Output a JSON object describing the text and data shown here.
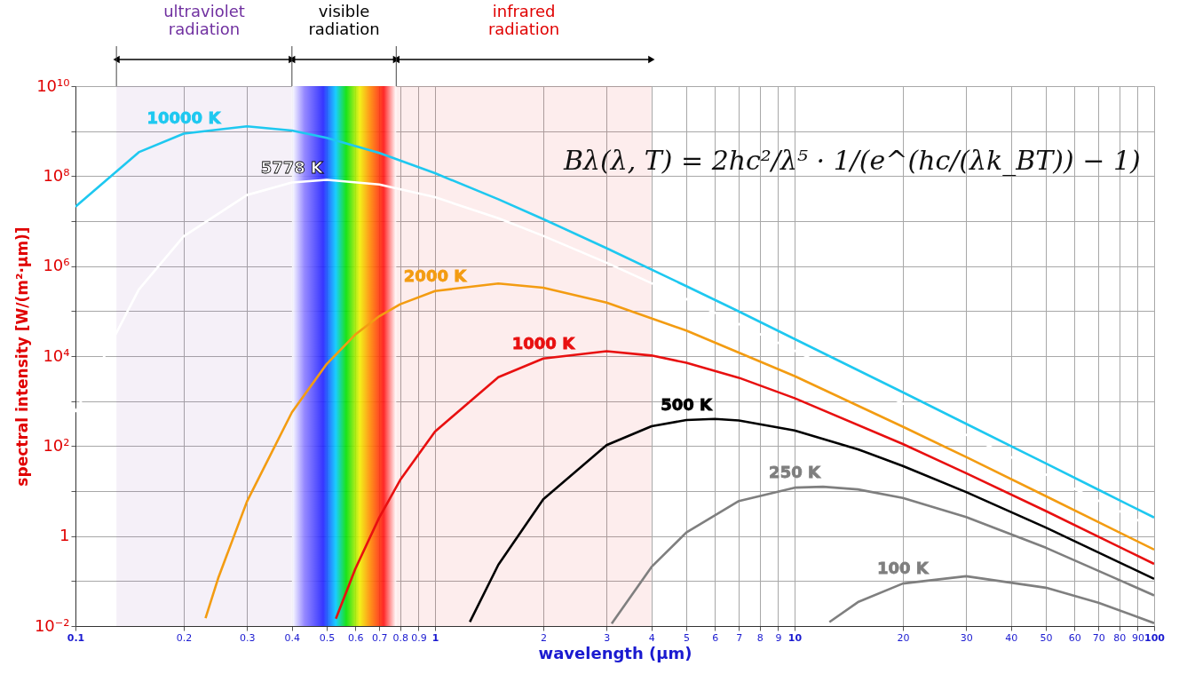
{
  "chart_data": {
    "type": "line",
    "xlabel": "wavelength (µm)",
    "ylabel": "spectral intensity [W/(m²·µm)]",
    "log": "xy",
    "grid": true,
    "xlim": [
      0.1,
      100
    ],
    "ylim": [
      0.01,
      10000000000
    ],
    "xticks": [
      0.1,
      0.2,
      0.3,
      0.4,
      0.5,
      0.6,
      0.7,
      0.8,
      0.9,
      1,
      2,
      3,
      4,
      5,
      6,
      7,
      8,
      9,
      10,
      20,
      30,
      40,
      50,
      60,
      70,
      80,
      90,
      100
    ],
    "yticks": [
      {
        "value": 0.01,
        "label": "10⁻²"
      },
      {
        "value": 0.1,
        "label": null
      },
      1,
      {
        "value": 10,
        "label": null
      },
      {
        "value": 100,
        "label": "10²"
      },
      {
        "value": 1000,
        "label": null
      },
      {
        "value": 10000,
        "label": "10⁴"
      },
      {
        "value": 100000,
        "label": null
      },
      {
        "value": 1000000,
        "label": "10⁶"
      },
      {
        "value": 10000000,
        "label": null
      },
      {
        "value": 100000000,
        "label": "10⁸"
      },
      {
        "value": 1000000000,
        "label": null
      },
      {
        "value": 10000000000,
        "label": "10¹⁰"
      }
    ],
    "bands": [
      {
        "axis": "x",
        "from": 0.13,
        "to": 0.4,
        "label": "ultraviolet radiation",
        "color": "#7030a0"
      },
      {
        "axis": "x",
        "from": 0.4,
        "to": 0.78,
        "label": "visible radiation"
      },
      {
        "axis": "x",
        "from": 0.78,
        "to": 4,
        "label": "infrared radiation",
        "color": "#e00000"
      }
    ],
    "annotations": [
      "Bλ(λ, T) = 2hc²/λ⁵ · 1/(e^(hc/(λk_BT)) − 1)"
    ],
    "series": [
      {
        "name": "10000 K",
        "color": "#1ec8f0",
        "x": [
          0.1,
          0.15,
          0.2,
          0.3,
          0.4,
          0.5,
          0.7,
          1,
          1.5,
          2,
          3,
          5,
          7,
          10,
          20,
          30,
          50,
          70,
          100
        ],
        "values": [
          21000000,
          340000000,
          880000000,
          1280000000,
          1030000000,
          710000000,
          327000000,
          116000000,
          30600000,
          11100000,
          2500000,
          359000,
          98000,
          24000,
          1570,
          313,
          41,
          10.7,
          2.58
        ]
      },
      {
        "name": "5778 K",
        "color": "#ffffff",
        "x": [
          0.1,
          0.15,
          0.2,
          0.3,
          0.4,
          0.5,
          0.7,
          1,
          1.5,
          2,
          3,
          5,
          10,
          20,
          30,
          50,
          100
        ],
        "values": [
          573,
          300000,
          4600000,
          38000000,
          72000000,
          83000000,
          65000000,
          34000000,
          11600000,
          4700000,
          1190000,
          185000,
          13200,
          882,
          178,
          23.4,
          1.48
        ]
      },
      {
        "name": "2000 K",
        "color": "#f39c12",
        "x": [
          0.23,
          0.25,
          0.3,
          0.4,
          0.5,
          0.6,
          0.7,
          0.8,
          1,
          1.5,
          2,
          3,
          5,
          10,
          20,
          30,
          50,
          100
        ],
        "values": [
          0.015,
          0.122,
          5.9,
          565,
          6700,
          30000,
          77000,
          142000,
          280000,
          410000,
          330000,
          154000,
          37000,
          3600,
          270,
          57,
          7.7,
          0.5
        ]
      },
      {
        "name": "1000 K",
        "color": "#e81010",
        "x": [
          0.53,
          0.6,
          0.7,
          0.8,
          1,
          1.5,
          2,
          3,
          4,
          5,
          7,
          10,
          20,
          30,
          50,
          100
        ],
        "values": [
          0.0145,
          0.185,
          2.6,
          17.6,
          211,
          3400,
          8800,
          12800,
          10300,
          7100,
          3300,
          1160,
          111,
          25,
          3.6,
          0.24
        ]
      },
      {
        "name": "500 K",
        "color": "#000000",
        "x": [
          1.25,
          1.5,
          2,
          3,
          4,
          5,
          6,
          7,
          10,
          15,
          20,
          30,
          50,
          100
        ],
        "values": [
          0.0123,
          0.23,
          6.6,
          105,
          275,
          380,
          401,
          372,
          223,
          85,
          36,
          9.5,
          1.54,
          0.112
        ]
      },
      {
        "name": "250 K",
        "color": "#7f7f7f",
        "x": [
          3.1,
          4,
          5,
          7,
          10,
          12,
          15,
          20,
          30,
          50,
          100
        ],
        "values": [
          0.0113,
          0.206,
          1.2,
          6,
          11.9,
          12.5,
          10.9,
          7,
          2.65,
          0.55,
          0.048
        ]
      },
      {
        "name": "100 K",
        "color": "#7f7f7f",
        "x": [
          12.5,
          15,
          20,
          30,
          50,
          70,
          100
        ],
        "values": [
          0.0123,
          0.034,
          0.088,
          0.128,
          0.071,
          0.033,
          0.0116
        ]
      }
    ]
  }
}
